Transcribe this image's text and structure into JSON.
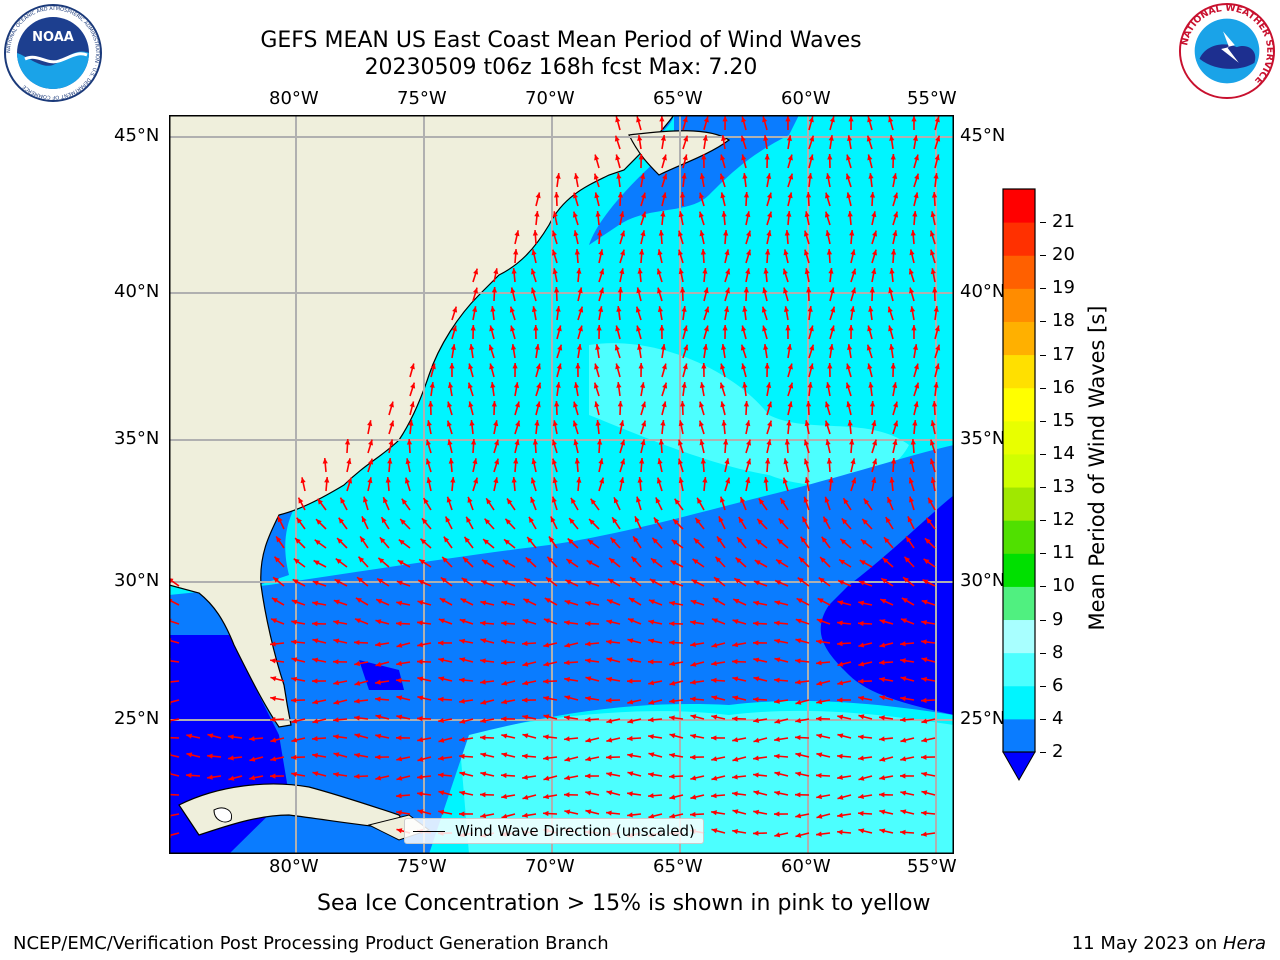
{
  "header": {
    "title_line1": "GEFS MEAN US East Coast Mean Period of Wind Waves",
    "title_line2": "20230509 t06z 168h fcst   Max: 7.20"
  },
  "logos": {
    "noaa": {
      "text": "NOAA",
      "ring_text": "NATIONAL OCEANIC AND ATMOSPHERIC ADMINISTRATION · U.S. DEPARTMENT OF COMMERCE"
    },
    "nws": {
      "ring_text": "NATIONAL WEATHER SERVICE"
    }
  },
  "map": {
    "lon_labels": [
      "80°W",
      "75°W",
      "70°W",
      "65°W",
      "60°W",
      "55°W"
    ],
    "lat_labels": [
      "45°N",
      "40°N",
      "35°N",
      "30°N",
      "25°N"
    ],
    "lon_range": [
      -85,
      -54.3
    ],
    "lat_range": [
      20.5,
      46
    ],
    "land_color": "#efefdc",
    "grid_color": "#b0b0b0",
    "arrow_color": "#ff0000",
    "legend_label": "Wind Wave Direction (unscaled)"
  },
  "colorbar": {
    "label": "Mean Period of Wind Waves [s]",
    "ticks": [
      "2",
      "4",
      "6",
      "8",
      "9",
      "10",
      "11",
      "12",
      "13",
      "14",
      "15",
      "16",
      "17",
      "18",
      "19",
      "20",
      "21"
    ],
    "colors": [
      "#0a7cff",
      "#00f5ff",
      "#4cffff",
      "#a8ffff",
      "#50f080",
      "#00e000",
      "#50e000",
      "#a0e800",
      "#d0ff00",
      "#e8ff00",
      "#ffff00",
      "#ffe000",
      "#ffb000",
      "#ff8c00",
      "#ff6000",
      "#ff3000",
      "#ff0000"
    ],
    "under_color": "#0000ff"
  },
  "caption": "Sea Ice Concentration > 15% is shown in pink to yellow",
  "footer": {
    "left": "NCEP/EMC/Verification Post Processing Product Generation Branch",
    "right_prefix": "11 May 2023 on ",
    "right_host": "Hera"
  }
}
